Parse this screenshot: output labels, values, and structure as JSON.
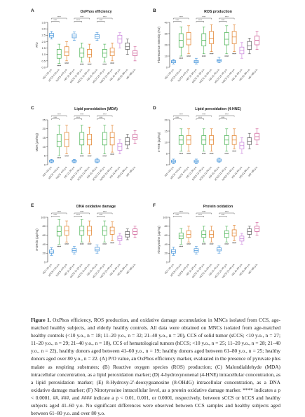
{
  "figure": {
    "panels": [
      {
        "letter": "A",
        "title": "OxPhos efficiency",
        "ylabel": "P/O",
        "yticks": [
          "0.0",
          "0.5",
          "1.0",
          "1.5",
          "2.0",
          "2.5",
          "3.0",
          "3.5"
        ],
        "ylim": [
          0,
          3.5
        ],
        "groups": [
          {
            "label": "HD <10 y.o.",
            "color": "#3b8fd9",
            "min": 2.2,
            "q1": 2.35,
            "med": 2.5,
            "q3": 2.65,
            "max": 2.8
          },
          {
            "label": "sCCS <10 y.o.",
            "color": "#3fae49",
            "min": 0.3,
            "q1": 0.7,
            "med": 1.0,
            "q3": 1.4,
            "max": 1.8
          },
          {
            "label": "hCCS <10 y.o.",
            "color": "#e07a1f",
            "min": 0.5,
            "q1": 0.9,
            "med": 1.2,
            "q3": 1.6,
            "max": 2.0
          },
          {
            "label": "HD 11-20 y.o.",
            "color": "#3b8fd9",
            "min": 2.1,
            "q1": 2.3,
            "med": 2.45,
            "q3": 2.6,
            "max": 2.75
          },
          {
            "label": "sCCS 11-20 y.o.",
            "color": "#3fae49",
            "min": 0.4,
            "q1": 0.8,
            "med": 1.1,
            "q3": 1.5,
            "max": 1.9
          },
          {
            "label": "hCCS 11-20 y.o.",
            "color": "#e07a1f",
            "min": 0.4,
            "q1": 0.8,
            "med": 1.0,
            "q3": 1.4,
            "max": 1.8
          },
          {
            "label": "HD 21-40 y.o.",
            "color": "#3b8fd9",
            "min": 2.1,
            "q1": 2.25,
            "med": 2.4,
            "q3": 2.55,
            "max": 2.7
          },
          {
            "label": "sCCS 21-40 y.o.",
            "color": "#3fae49",
            "min": 0.4,
            "q1": 0.8,
            "med": 1.1,
            "q3": 1.4,
            "max": 1.8
          },
          {
            "label": "hCCS 21-40 y.o.",
            "color": "#e07a1f",
            "min": 0.5,
            "q1": 0.9,
            "med": 1.2,
            "q3": 1.5,
            "max": 1.9
          },
          {
            "label": "HD 41-60 y.o.",
            "color": "#c77ddb",
            "min": 1.5,
            "q1": 1.9,
            "med": 2.2,
            "q3": 2.5,
            "max": 2.7
          },
          {
            "label": "HD 61-80 y.o.",
            "color": "#555555",
            "min": 1.0,
            "q1": 1.4,
            "med": 1.6,
            "q3": 1.9,
            "max": 2.2
          },
          {
            "label": "HD >80 y.o.",
            "color": "#c94a8a",
            "min": 0.5,
            "q1": 0.9,
            "med": 1.1,
            "q3": 1.3,
            "max": 1.6
          }
        ]
      },
      {
        "letter": "B",
        "title": "ROS production",
        "ylabel": "Fluorescence Intensity (AU)",
        "yticks": [
          "0",
          "10",
          "20",
          "30",
          "40"
        ],
        "ylim": [
          0,
          40
        ],
        "groups": [
          {
            "label": "HD <10 y.o.",
            "color": "#3b8fd9",
            "min": 3,
            "q1": 4,
            "med": 5,
            "q3": 6,
            "max": 7
          },
          {
            "label": "sCCS <10 y.o.",
            "color": "#3fae49",
            "min": 10,
            "q1": 18,
            "med": 24,
            "q3": 30,
            "max": 36
          },
          {
            "label": "hCCS <10 y.o.",
            "color": "#e07a1f",
            "min": 12,
            "q1": 20,
            "med": 25,
            "q3": 31,
            "max": 37
          },
          {
            "label": "HD 11-20 y.o.",
            "color": "#3b8fd9",
            "min": 3,
            "q1": 4,
            "med": 5,
            "q3": 6,
            "max": 8
          },
          {
            "label": "sCCS 11-20 y.o.",
            "color": "#3fae49",
            "min": 12,
            "q1": 19,
            "med": 24,
            "q3": 30,
            "max": 36
          },
          {
            "label": "hCCS 11-20 y.o.",
            "color": "#e07a1f",
            "min": 14,
            "q1": 21,
            "med": 26,
            "q3": 32,
            "max": 38
          },
          {
            "label": "HD 21-40 y.o.",
            "color": "#3b8fd9",
            "min": 4,
            "q1": 5,
            "med": 6,
            "q3": 7,
            "max": 9
          },
          {
            "label": "sCCS 21-40 y.o.",
            "color": "#3fae49",
            "min": 12,
            "q1": 20,
            "med": 25,
            "q3": 31,
            "max": 37
          },
          {
            "label": "hCCS 21-40 y.o.",
            "color": "#e07a1f",
            "min": 14,
            "q1": 21,
            "med": 27,
            "q3": 32,
            "max": 38
          },
          {
            "label": "HD 41-60 y.o.",
            "color": "#c77ddb",
            "min": 8,
            "q1": 12,
            "med": 15,
            "q3": 18,
            "max": 22
          },
          {
            "label": "HD 61-80 y.o.",
            "color": "#555555",
            "min": 12,
            "q1": 16,
            "med": 19,
            "q3": 23,
            "max": 26
          },
          {
            "label": "HD >80 y.o.",
            "color": "#c94a8a",
            "min": 16,
            "q1": 20,
            "med": 24,
            "q3": 28,
            "max": 32
          }
        ]
      },
      {
        "letter": "C",
        "title": "Lipid peroxidation (MDA)",
        "ylabel": "MDA (µM/mg)",
        "yticks": [
          "0",
          "5",
          "10",
          "15",
          "20",
          "25"
        ],
        "ylim": [
          0,
          25
        ],
        "groups": [
          {
            "label": "HD <10 y.o.",
            "color": "#3b8fd9",
            "min": 1,
            "q1": 1.5,
            "med": 2,
            "q3": 2.5,
            "max": 3
          },
          {
            "label": "sCCS <10 y.o.",
            "color": "#3fae49",
            "min": 5,
            "q1": 10,
            "med": 13,
            "q3": 17,
            "max": 22
          },
          {
            "label": "hCCS <10 y.o.",
            "color": "#e07a1f",
            "min": 6,
            "q1": 10,
            "med": 14,
            "q3": 18,
            "max": 22
          },
          {
            "label": "HD 11-20 y.o.",
            "color": "#3b8fd9",
            "min": 1,
            "q1": 1.5,
            "med": 2,
            "q3": 2.5,
            "max": 3
          },
          {
            "label": "sCCS 11-20 y.o.",
            "color": "#3fae49",
            "min": 6,
            "q1": 11,
            "med": 14,
            "q3": 18,
            "max": 22
          },
          {
            "label": "hCCS 11-20 y.o.",
            "color": "#e07a1f",
            "min": 6,
            "q1": 11,
            "med": 14,
            "q3": 17,
            "max": 21
          },
          {
            "label": "HD 21-40 y.o.",
            "color": "#3b8fd9",
            "min": 1,
            "q1": 1.5,
            "med": 2,
            "q3": 2.8,
            "max": 3.5
          },
          {
            "label": "sCCS 21-40 y.o.",
            "color": "#3fae49",
            "min": 6,
            "q1": 11,
            "med": 14,
            "q3": 18,
            "max": 22
          },
          {
            "label": "hCCS 21-40 y.o.",
            "color": "#e07a1f",
            "min": 7,
            "q1": 11,
            "med": 15,
            "q3": 18,
            "max": 22
          },
          {
            "label": "HD 41-60 y.o.",
            "color": "#c77ddb",
            "min": 6,
            "q1": 8,
            "med": 10,
            "q3": 12,
            "max": 14
          },
          {
            "label": "HD 61-80 y.o.",
            "color": "#555555",
            "min": 9,
            "q1": 11,
            "med": 13,
            "q3": 15,
            "max": 17
          },
          {
            "label": "HD >80 y.o.",
            "color": "#c94a8a",
            "min": 12,
            "q1": 14,
            "med": 15,
            "q3": 17,
            "max": 19
          }
        ]
      },
      {
        "letter": "D",
        "title": "Lipid peroxidation (4-HNE)",
        "ylabel": "4-HNE (µg/mg)",
        "yticks": [
          "0",
          "5",
          "10",
          "15",
          "20"
        ],
        "ylim": [
          0,
          20
        ],
        "groups": [
          {
            "label": "HD <10 y.o.",
            "color": "#3b8fd9",
            "min": 0.5,
            "q1": 1,
            "med": 1.5,
            "q3": 2,
            "max": 2.5
          },
          {
            "label": "sCCS <10 y.o.",
            "color": "#3fae49",
            "min": 6,
            "q1": 9,
            "med": 11,
            "q3": 13,
            "max": 16
          },
          {
            "label": "hCCS <10 y.o.",
            "color": "#e07a1f",
            "min": 6,
            "q1": 9,
            "med": 11,
            "q3": 13,
            "max": 16
          },
          {
            "label": "HD 11-20 y.o.",
            "color": "#3b8fd9",
            "min": 0.5,
            "q1": 1,
            "med": 1.5,
            "q3": 2,
            "max": 2.5
          },
          {
            "label": "sCCS 11-20 y.o.",
            "color": "#3fae49",
            "min": 6,
            "q1": 9,
            "med": 11,
            "q3": 13,
            "max": 16
          },
          {
            "label": "hCCS 11-20 y.o.",
            "color": "#e07a1f",
            "min": 6,
            "q1": 9,
            "med": 11,
            "q3": 13,
            "max": 16
          },
          {
            "label": "HD 21-40 y.o.",
            "color": "#3b8fd9",
            "min": 1,
            "q1": 1.5,
            "med": 2,
            "q3": 2.5,
            "max": 3
          },
          {
            "label": "sCCS 21-40 y.o.",
            "color": "#3fae49",
            "min": 6,
            "q1": 9,
            "med": 11,
            "q3": 13,
            "max": 16
          },
          {
            "label": "hCCS 21-40 y.o.",
            "color": "#e07a1f",
            "min": 7,
            "q1": 9,
            "med": 11,
            "q3": 13,
            "max": 16
          },
          {
            "label": "HD 41-60 y.o.",
            "color": "#c77ddb",
            "min": 5,
            "q1": 7,
            "med": 8.5,
            "q3": 10,
            "max": 12
          },
          {
            "label": "HD 61-80 y.o.",
            "color": "#555555",
            "min": 7,
            "q1": 9,
            "med": 10.5,
            "q3": 12,
            "max": 14
          },
          {
            "label": "HD >80 y.o.",
            "color": "#c94a8a",
            "min": 9,
            "q1": 11,
            "med": 12.5,
            "q3": 14,
            "max": 16
          }
        ]
      },
      {
        "letter": "E",
        "title": "DNA oxidative damage",
        "ylabel": "8-OHdG (µg/mg)",
        "yticks": [
          "0",
          "20",
          "40",
          "60",
          "80",
          "100"
        ],
        "ylim": [
          0,
          100
        ],
        "groups": [
          {
            "label": "HD <10 y.o.",
            "color": "#3b8fd9",
            "min": 15,
            "q1": 20,
            "med": 23,
            "q3": 27,
            "max": 32
          },
          {
            "label": "sCCS <10 y.o.",
            "color": "#3fae49",
            "min": 40,
            "q1": 58,
            "med": 68,
            "q3": 80,
            "max": 95
          },
          {
            "label": "hCCS <10 y.o.",
            "color": "#e07a1f",
            "min": 45,
            "q1": 60,
            "med": 70,
            "q3": 80,
            "max": 92
          },
          {
            "label": "HD 11-20 y.o.",
            "color": "#3b8fd9",
            "min": 18,
            "q1": 22,
            "med": 26,
            "q3": 30,
            "max": 35
          },
          {
            "label": "sCCS 11-20 y.o.",
            "color": "#3fae49",
            "min": 45,
            "q1": 60,
            "med": 70,
            "q3": 80,
            "max": 95
          },
          {
            "label": "hCCS 11-20 y.o.",
            "color": "#e07a1f",
            "min": 45,
            "q1": 60,
            "med": 70,
            "q3": 80,
            "max": 92
          },
          {
            "label": "HD 21-40 y.o.",
            "color": "#3b8fd9",
            "min": 20,
            "q1": 25,
            "med": 29,
            "q3": 33,
            "max": 38
          },
          {
            "label": "sCCS 21-40 y.o.",
            "color": "#3fae49",
            "min": 45,
            "q1": 60,
            "med": 70,
            "q3": 80,
            "max": 92
          },
          {
            "label": "hCCS 21-40 y.o.",
            "color": "#e07a1f",
            "min": 48,
            "q1": 62,
            "med": 70,
            "q3": 78,
            "max": 90
          },
          {
            "label": "HD 41-60 y.o.",
            "color": "#c77ddb",
            "min": 40,
            "q1": 48,
            "med": 52,
            "q3": 58,
            "max": 64
          },
          {
            "label": "HD 61-80 y.o.",
            "color": "#555555",
            "min": 50,
            "q1": 56,
            "med": 62,
            "q3": 68,
            "max": 74
          },
          {
            "label": "HD >80 y.o.",
            "color": "#c94a8a",
            "min": 55,
            "q1": 62,
            "med": 68,
            "q3": 74,
            "max": 80
          }
        ]
      },
      {
        "letter": "F",
        "title": "Protein oxidation",
        "ylabel": "Nitrotyrosine (µg/mg)",
        "yticks": [
          "0",
          "20",
          "40",
          "60",
          "80",
          "100"
        ],
        "ylim": [
          0,
          100
        ],
        "groups": [
          {
            "label": "HD <10 y.o.",
            "color": "#3b8fd9",
            "min": 15,
            "q1": 20,
            "med": 24,
            "q3": 28,
            "max": 33
          },
          {
            "label": "sCCS <10 y.o.",
            "color": "#3fae49",
            "min": 40,
            "q1": 52,
            "med": 58,
            "q3": 65,
            "max": 75
          },
          {
            "label": "hCCS <10 y.o.",
            "color": "#e07a1f",
            "min": 45,
            "q1": 55,
            "med": 62,
            "q3": 70,
            "max": 80
          },
          {
            "label": "HD 11-20 y.o.",
            "color": "#3b8fd9",
            "min": 18,
            "q1": 22,
            "med": 26,
            "q3": 30,
            "max": 35
          },
          {
            "label": "sCCS 11-20 y.o.",
            "color": "#3fae49",
            "min": 45,
            "q1": 55,
            "med": 62,
            "q3": 70,
            "max": 80
          },
          {
            "label": "hCCS 11-20 y.o.",
            "color": "#e07a1f",
            "min": 45,
            "q1": 55,
            "med": 62,
            "q3": 70,
            "max": 80
          },
          {
            "label": "HD 21-40 y.o.",
            "color": "#3b8fd9",
            "min": 20,
            "q1": 25,
            "med": 28,
            "q3": 32,
            "max": 36
          },
          {
            "label": "sCCS 21-40 y.o.",
            "color": "#3fae49",
            "min": 45,
            "q1": 55,
            "med": 63,
            "q3": 70,
            "max": 80
          },
          {
            "label": "hCCS 21-40 y.o.",
            "color": "#e07a1f",
            "min": 48,
            "q1": 58,
            "med": 65,
            "q3": 72,
            "max": 82
          },
          {
            "label": "HD 41-60 y.o.",
            "color": "#c77ddb",
            "min": 40,
            "q1": 47,
            "med": 52,
            "q3": 58,
            "max": 64
          },
          {
            "label": "HD 61-80 y.o.",
            "color": "#555555",
            "min": 55,
            "q1": 62,
            "med": 68,
            "q3": 74,
            "max": 80
          },
          {
            "label": "HD >80 y.o.",
            "color": "#c94a8a",
            "min": 60,
            "q1": 68,
            "med": 74,
            "q3": 80,
            "max": 88
          }
        ]
      }
    ],
    "significance_label": "****",
    "hash_labels": [
      "####",
      "####",
      "####"
    ]
  },
  "caption": {
    "label": "Figure 1.",
    "text": " OxPhos efficiency, ROS production, and oxidative damage accumulation in MNCs isolated from CCS, age-matched healthy subjects, and elderly healthy controls. All data were obtained on MNCs isolated from age-matched healthy controls (<10 y.o., n = 18; 11–20 y.o., n = 32; 21–40 y.o., n = 20), CCS of solid tumor (sCCS; <10 y.o., n = 27; 11–20 y.o., n = 29; 21–40 y.o., n = 18), CCS of hematological tumors (hCCS; <10 y.o., n = 25; 11–20 y.o., n = 28; 21–40 y.o., n = 22), healthy donors aged between 41–60 y.o., n = 19; healthy donors aged between 61–80 y.o., n = 25; healthy donors aged over 80 y.o., n = 22. (A) P/O value, an OxPhos efficiency marker, evaluated in the presence of pyruvate plus malate as respiring substrates; (B) Reactive oxygen species (ROS) production; (C) Malondialdehyde (MDA) intracellular concentration, as a lipid peroxidation marker; (D) 4-hydroxynonenal (4-HNE) intracellular concentration, as a lipid peroxidation marker; (E) 8-Hydroxy-2′-deoxyguanosine (8-OHdG) intracellular concentration, as a DNA oxidative damage marker; (F) Nitrotyrosine intracellular level, as a protein oxidative damage marker. **** indicates a p < 0.0001. ##, ###, and #### indicate a p < 0.01, 0.001, or 0.0001, respectively, between sCCS or hCCS and healthy subjects aged 41–60 y.o. No significant differences were observed between CCS samples and healthy subjects aged between 61–80 y.o. and over 80 y.o."
  }
}
